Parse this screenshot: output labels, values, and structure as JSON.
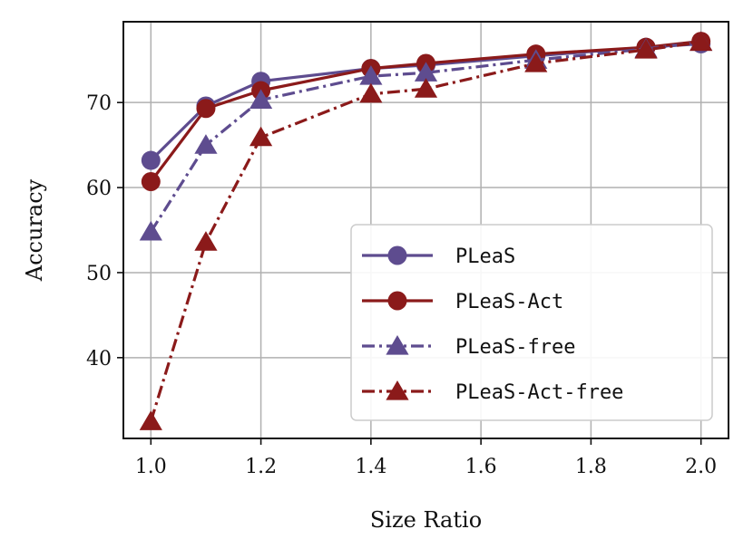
{
  "chart_data": {
    "type": "line",
    "title": "",
    "xlabel": "Size Ratio",
    "ylabel": "Accuracy",
    "xlim": [
      0.95,
      2.05
    ],
    "ylim": [
      30.5,
      79.5
    ],
    "xticks": [
      1.0,
      1.2,
      1.4,
      1.6,
      1.8,
      2.0
    ],
    "xtick_labels": [
      "1.0",
      "1.2",
      "1.4",
      "1.6",
      "1.8",
      "2.0"
    ],
    "yticks": [
      40,
      50,
      60,
      70
    ],
    "ytick_labels": [
      "40",
      "50",
      "60",
      "70"
    ],
    "grid": true,
    "legend_position": "lower-right",
    "series": [
      {
        "name": "PLeaS",
        "color": "#5e4c8f",
        "line_style": "solid",
        "marker": "circle",
        "x": [
          1.0,
          1.1,
          1.2,
          1.4,
          1.5,
          1.7,
          1.9,
          2.0
        ],
        "y": [
          63.2,
          69.6,
          72.5,
          74.0,
          74.4,
          75.5,
          76.5,
          76.9
        ]
      },
      {
        "name": "PLeaS-Act",
        "color": "#8b1a1a",
        "line_style": "solid",
        "marker": "circle",
        "x": [
          1.0,
          1.1,
          1.2,
          1.4,
          1.5,
          1.7,
          1.9,
          2.0
        ],
        "y": [
          60.7,
          69.3,
          71.4,
          74.0,
          74.6,
          75.7,
          76.5,
          77.2
        ]
      },
      {
        "name": "PLeaS-free",
        "color": "#5e4c8f",
        "line_style": "dashdot",
        "marker": "triangle",
        "x": [
          1.0,
          1.1,
          1.2,
          1.4,
          1.5,
          1.7,
          1.9,
          2.0
        ],
        "y": [
          54.8,
          65.0,
          70.3,
          73.1,
          73.5,
          75.0,
          76.3,
          77.1
        ]
      },
      {
        "name": "PLeaS-Act-free",
        "color": "#8b1a1a",
        "line_style": "dashdot",
        "marker": "triangle",
        "x": [
          1.0,
          1.1,
          1.2,
          1.4,
          1.5,
          1.7,
          1.9,
          2.0
        ],
        "y": [
          32.5,
          53.6,
          65.9,
          71.0,
          71.6,
          74.6,
          76.2,
          77.1
        ]
      }
    ]
  }
}
